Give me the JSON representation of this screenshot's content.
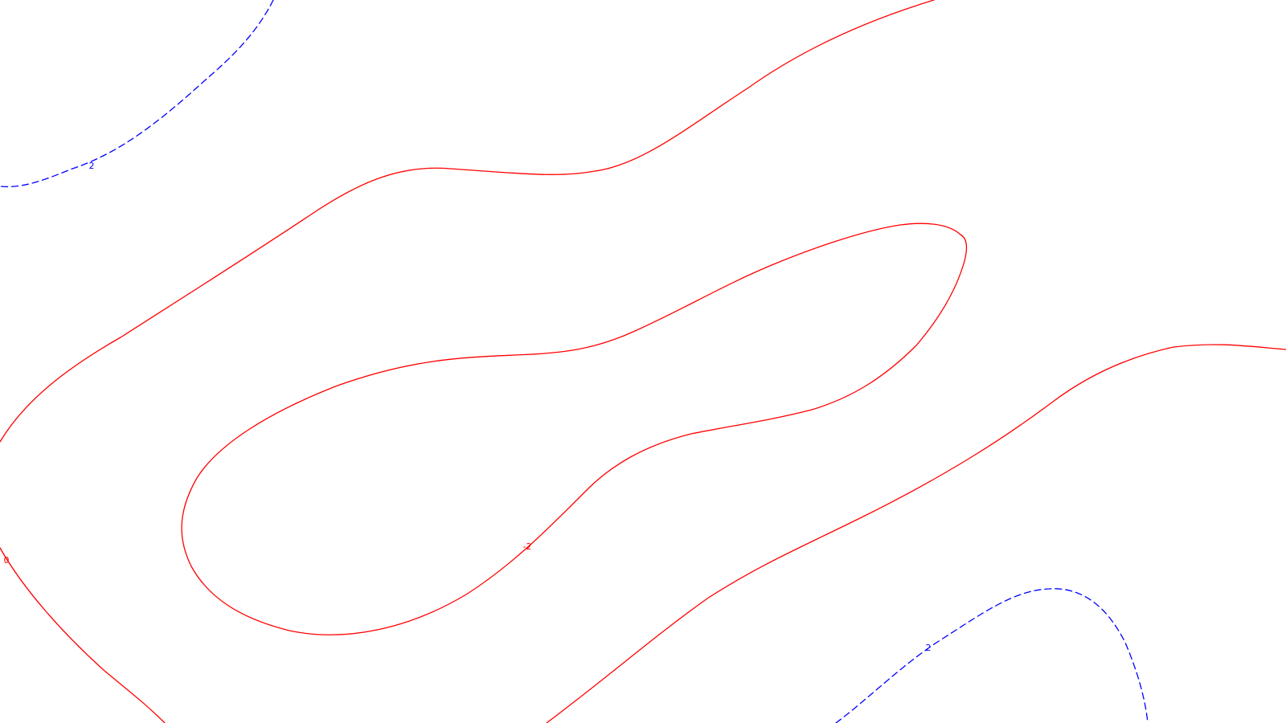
{
  "chart_data": {
    "type": "contour",
    "title": "",
    "xlabel": "",
    "ylabel": "",
    "grid": false,
    "legend": "none",
    "levels": [
      {
        "level": "-2",
        "line": "solid",
        "color": "#ff0000"
      },
      {
        "level": "0",
        "line": "solid",
        "color": "#ff0000"
      },
      {
        "level": "2",
        "line": "dashed",
        "color": "#0000ff"
      }
    ],
    "contour_labels": [
      {
        "text": "2",
        "color": "#0000ff"
      },
      {
        "text": "-2",
        "color": "#ff0000"
      },
      {
        "text": "0",
        "color": "#ff0000"
      },
      {
        "text": "2",
        "color": "#0000ff"
      }
    ]
  }
}
